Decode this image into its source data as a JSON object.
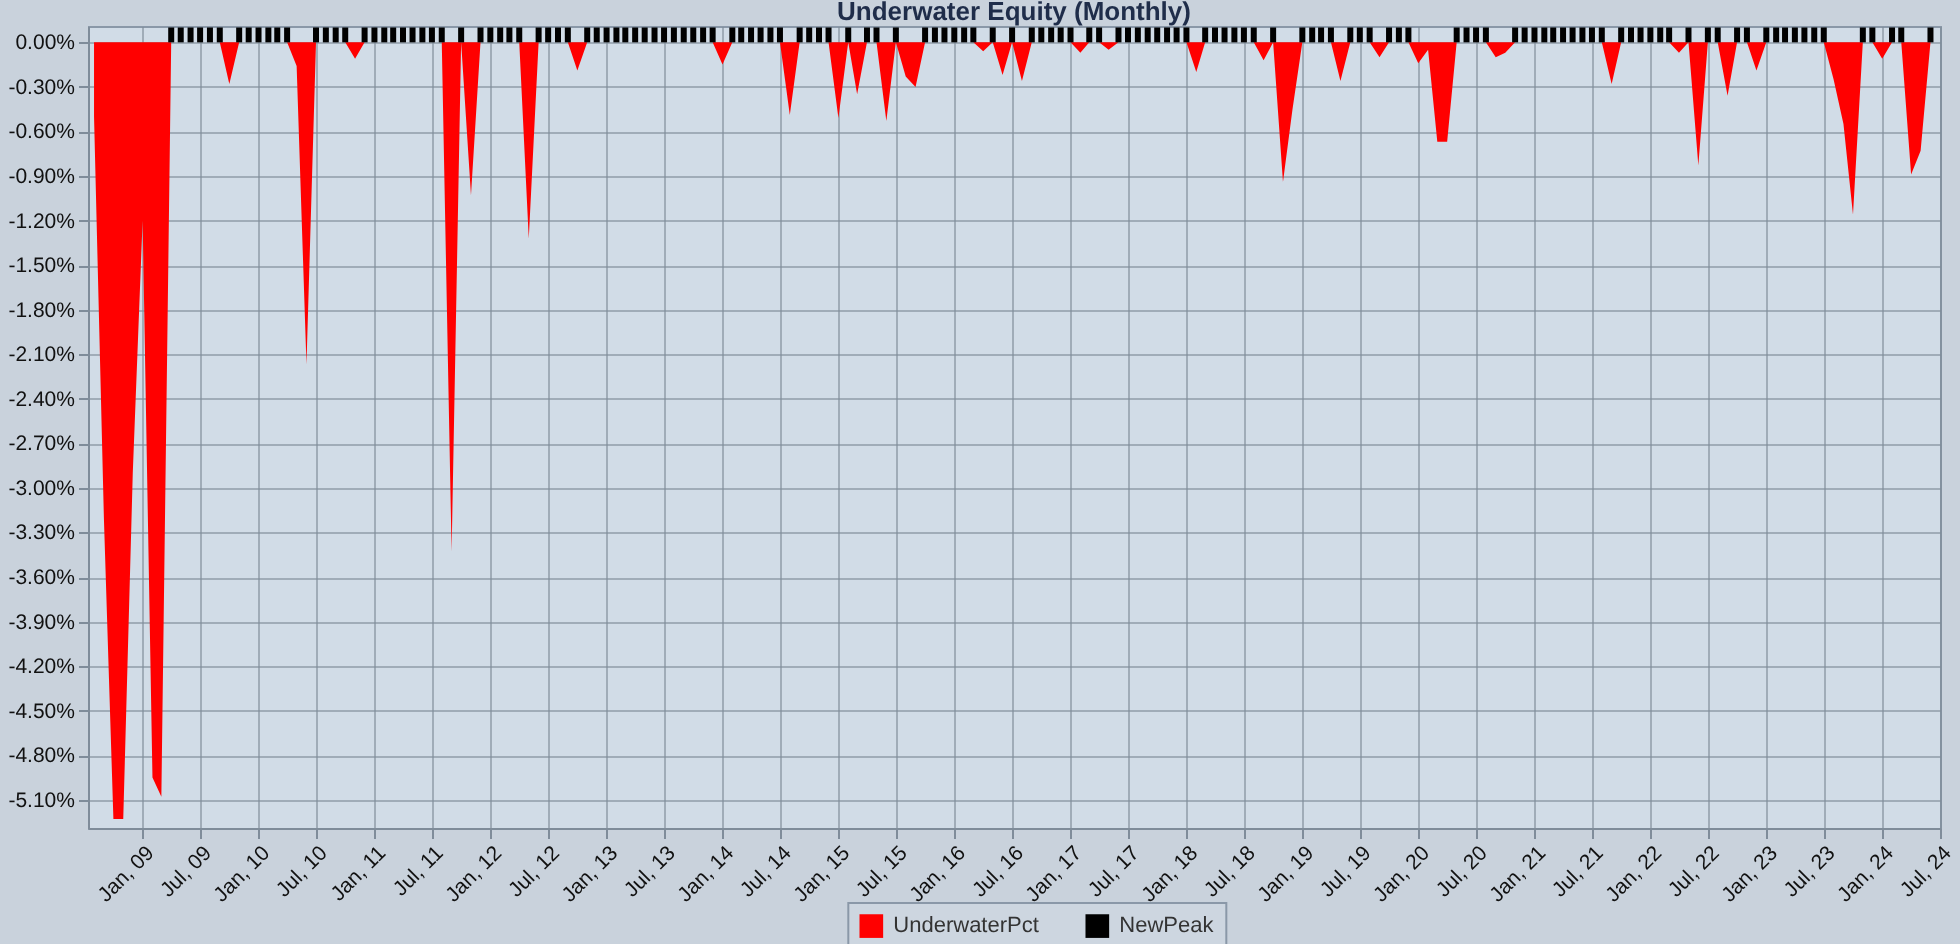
{
  "chart_data": {
    "type": "area",
    "title": "Underwater Equity (Monthly)",
    "x": [
      "2008-08",
      "2008-09",
      "2008-10",
      "2008-11",
      "2008-12",
      "2009-01",
      "2009-02",
      "2009-03",
      "2009-04",
      "2009-05",
      "2009-06",
      "2009-07",
      "2009-08",
      "2009-09",
      "2009-10",
      "2009-11",
      "2009-12",
      "2010-01",
      "2010-02",
      "2010-03",
      "2010-04",
      "2010-05",
      "2010-06",
      "2010-07",
      "2010-08",
      "2010-09",
      "2010-10",
      "2010-11",
      "2010-12",
      "2011-01",
      "2011-02",
      "2011-03",
      "2011-04",
      "2011-05",
      "2011-06",
      "2011-07",
      "2011-08",
      "2011-09",
      "2011-10",
      "2011-11",
      "2011-12",
      "2012-01",
      "2012-02",
      "2012-03",
      "2012-04",
      "2012-05",
      "2012-06",
      "2012-07",
      "2012-08",
      "2012-09",
      "2012-10",
      "2012-11",
      "2012-12",
      "2013-01",
      "2013-02",
      "2013-03",
      "2013-04",
      "2013-05",
      "2013-06",
      "2013-07",
      "2013-08",
      "2013-09",
      "2013-10",
      "2013-11",
      "2013-12",
      "2014-01",
      "2014-02",
      "2014-03",
      "2014-04",
      "2014-05",
      "2014-06",
      "2014-07",
      "2014-08",
      "2014-09",
      "2014-10",
      "2014-11",
      "2014-12",
      "2015-01",
      "2015-02",
      "2015-03",
      "2015-04",
      "2015-05",
      "2015-06",
      "2015-07",
      "2015-08",
      "2015-09",
      "2015-10",
      "2015-11",
      "2015-12",
      "2016-01",
      "2016-02",
      "2016-03",
      "2016-04",
      "2016-05",
      "2016-06",
      "2016-07",
      "2016-08",
      "2016-09",
      "2016-10",
      "2016-11",
      "2016-12",
      "2017-01",
      "2017-02",
      "2017-03",
      "2017-04",
      "2017-05",
      "2017-06",
      "2017-07",
      "2017-08",
      "2017-09",
      "2017-10",
      "2017-11",
      "2017-12",
      "2018-01",
      "2018-02",
      "2018-03",
      "2018-04",
      "2018-05",
      "2018-06",
      "2018-07",
      "2018-08",
      "2018-09",
      "2018-10",
      "2018-11",
      "2018-12",
      "2019-01",
      "2019-02",
      "2019-03",
      "2019-04",
      "2019-05",
      "2019-06",
      "2019-07",
      "2019-08",
      "2019-09",
      "2019-10",
      "2019-11",
      "2019-12",
      "2020-01",
      "2020-02",
      "2020-03",
      "2020-04",
      "2020-05",
      "2020-06",
      "2020-07",
      "2020-08",
      "2020-09",
      "2020-10",
      "2020-11",
      "2020-12",
      "2021-01",
      "2021-02",
      "2021-03",
      "2021-04",
      "2021-05",
      "2021-06",
      "2021-07",
      "2021-08",
      "2021-09",
      "2021-10",
      "2021-11",
      "2021-12",
      "2022-01",
      "2022-02",
      "2022-03",
      "2022-04",
      "2022-05",
      "2022-06",
      "2022-07",
      "2022-08",
      "2022-09",
      "2022-10",
      "2022-11",
      "2022-12",
      "2023-01",
      "2023-02",
      "2023-03",
      "2023-04",
      "2023-05",
      "2023-06",
      "2023-07",
      "2023-08",
      "2023-09",
      "2023-10",
      "2023-11",
      "2023-12",
      "2024-01",
      "2024-02",
      "2024-03",
      "2024-04",
      "2024-05",
      "2024-06"
    ],
    "series": [
      {
        "name": "UnderwaterPct",
        "color": "#ff0000",
        "values": [
          -0.5,
          -3.2,
          -5.23,
          -5.23,
          -2.9,
          -1.2,
          -4.95,
          -5.08,
          0,
          0,
          0,
          0,
          0,
          0,
          -0.28,
          0,
          0,
          0,
          0,
          0,
          0,
          -0.16,
          -2.17,
          0,
          0,
          0,
          0,
          -0.11,
          0,
          0,
          0,
          0,
          0,
          0,
          0,
          0,
          0,
          -3.43,
          0,
          -1.03,
          0,
          0,
          0,
          0,
          0,
          -1.32,
          0,
          0,
          0,
          0,
          -0.19,
          0,
          0,
          0,
          0,
          0,
          0,
          0,
          0,
          0,
          0,
          0,
          0,
          0,
          0,
          -0.15,
          0,
          0,
          0,
          0,
          0,
          0,
          -0.49,
          0,
          0,
          0,
          0,
          -0.51,
          0,
          -0.35,
          0,
          0,
          -0.53,
          0,
          -0.23,
          -0.3,
          0,
          0,
          0,
          0,
          0,
          0,
          -0.06,
          0,
          -0.22,
          0,
          -0.26,
          0,
          0,
          0,
          0,
          0,
          -0.07,
          0,
          0,
          -0.05,
          0,
          0,
          0,
          0,
          0,
          0,
          0,
          0,
          -0.2,
          0,
          0,
          0,
          0,
          0,
          0,
          -0.12,
          0,
          -0.94,
          -0.45,
          0,
          0,
          0,
          0,
          -0.26,
          0,
          0,
          0,
          -0.1,
          0,
          0,
          0,
          -0.14,
          -0.05,
          -0.67,
          -0.67,
          0,
          0,
          0,
          0,
          -0.1,
          -0.07,
          0,
          0,
          0,
          0,
          0,
          0,
          0,
          0,
          0,
          0,
          -0.28,
          0,
          0,
          0,
          0,
          0,
          0,
          -0.07,
          0,
          -0.83,
          0,
          0,
          -0.36,
          0,
          0,
          -0.19,
          0,
          0,
          0,
          0,
          0,
          0,
          0,
          -0.25,
          -0.55,
          -1.16,
          0,
          0,
          -0.11,
          0,
          0,
          -0.89,
          -0.73,
          0
        ]
      },
      {
        "name": "NewPeak",
        "type": "bar",
        "color": "#000000",
        "values": [
          null,
          null,
          null,
          null,
          null,
          null,
          null,
          null,
          0.1,
          0.1,
          0.1,
          0.1,
          0.1,
          0.1,
          null,
          0.1,
          0.1,
          0.1,
          0.1,
          0.1,
          0.1,
          null,
          null,
          0.1,
          0.1,
          0.1,
          0.1,
          null,
          0.1,
          0.1,
          0.1,
          0.1,
          0.1,
          0.1,
          0.1,
          0.1,
          0.1,
          null,
          0.1,
          null,
          0.1,
          0.1,
          0.1,
          0.1,
          0.1,
          null,
          0.1,
          0.1,
          0.1,
          0.1,
          null,
          0.1,
          0.1,
          0.1,
          0.1,
          0.1,
          0.1,
          0.1,
          0.1,
          0.1,
          0.1,
          0.1,
          0.1,
          0.1,
          0.1,
          null,
          0.1,
          0.1,
          0.1,
          0.1,
          0.1,
          0.1,
          null,
          0.1,
          0.1,
          0.1,
          0.1,
          null,
          0.1,
          null,
          0.1,
          0.1,
          null,
          0.1,
          null,
          null,
          0.1,
          0.1,
          0.1,
          0.1,
          0.1,
          0.1,
          null,
          0.1,
          null,
          0.1,
          null,
          0.1,
          0.1,
          0.1,
          0.1,
          0.1,
          null,
          0.1,
          0.1,
          null,
          0.1,
          0.1,
          0.1,
          0.1,
          0.1,
          0.1,
          0.1,
          0.1,
          null,
          0.1,
          0.1,
          0.1,
          0.1,
          0.1,
          0.1,
          null,
          0.1,
          null,
          null,
          0.1,
          0.1,
          0.1,
          0.1,
          null,
          0.1,
          0.1,
          0.1,
          null,
          0.1,
          0.1,
          0.1,
          null,
          null,
          null,
          null,
          0.1,
          0.1,
          0.1,
          0.1,
          null,
          null,
          0.1,
          0.1,
          0.1,
          0.1,
          0.1,
          0.1,
          0.1,
          0.1,
          0.1,
          0.1,
          null,
          0.1,
          0.1,
          0.1,
          0.1,
          0.1,
          0.1,
          null,
          0.1,
          null,
          0.1,
          0.1,
          null,
          0.1,
          0.1,
          null,
          0.1,
          0.1,
          0.1,
          0.1,
          0.1,
          0.1,
          0.1,
          null,
          null,
          null,
          0.1,
          0.1,
          null,
          0.1,
          0.1,
          null,
          null,
          0.1
        ]
      }
    ],
    "xlim": [
      "2008-07-13",
      "2024-07"
    ],
    "xticks": [
      {
        "value": "2009-01",
        "label": "Jan, 09"
      },
      {
        "value": "2009-07",
        "label": "Jul, 09"
      },
      {
        "value": "2010-01",
        "label": "Jan, 10"
      },
      {
        "value": "2010-07",
        "label": "Jul, 10"
      },
      {
        "value": "2011-01",
        "label": "Jan, 11"
      },
      {
        "value": "2011-07",
        "label": "Jul, 11"
      },
      {
        "value": "2012-01",
        "label": "Jan, 12"
      },
      {
        "value": "2012-07",
        "label": "Jul, 12"
      },
      {
        "value": "2013-01",
        "label": "Jan, 13"
      },
      {
        "value": "2013-07",
        "label": "Jul, 13"
      },
      {
        "value": "2014-01",
        "label": "Jan, 14"
      },
      {
        "value": "2014-07",
        "label": "Jul, 14"
      },
      {
        "value": "2015-01",
        "label": "Jan, 15"
      },
      {
        "value": "2015-07",
        "label": "Jul, 15"
      },
      {
        "value": "2016-01",
        "label": "Jan, 16"
      },
      {
        "value": "2016-07",
        "label": "Jul, 16"
      },
      {
        "value": "2017-01",
        "label": "Jan, 17"
      },
      {
        "value": "2017-07",
        "label": "Jul, 17"
      },
      {
        "value": "2018-01",
        "label": "Jan, 18"
      },
      {
        "value": "2018-07",
        "label": "Jul, 18"
      },
      {
        "value": "2019-01",
        "label": "Jan, 19"
      },
      {
        "value": "2019-07",
        "label": "Jul, 19"
      },
      {
        "value": "2020-01",
        "label": "Jan, 20"
      },
      {
        "value": "2020-07",
        "label": "Jul, 20"
      },
      {
        "value": "2021-01",
        "label": "Jan, 21"
      },
      {
        "value": "2021-07",
        "label": "Jul, 21"
      },
      {
        "value": "2022-01",
        "label": "Jan, 22"
      },
      {
        "value": "2022-07",
        "label": "Jul, 22"
      },
      {
        "value": "2023-01",
        "label": "Jan, 23"
      },
      {
        "value": "2023-07",
        "label": "Jul, 23"
      },
      {
        "value": "2024-01",
        "label": "Jan, 24"
      },
      {
        "value": "2024-07",
        "label": "Jul, 24"
      }
    ],
    "ylim": [
      -5.29,
      0.11
    ],
    "yticks": [
      {
        "value": 0,
        "label": "0.00%"
      },
      {
        "value": -0.3,
        "label": "-0.30%"
      },
      {
        "value": -0.6,
        "label": "-0.60%"
      },
      {
        "value": -0.9,
        "label": "-0.90%"
      },
      {
        "value": -1.2,
        "label": "-1.20%"
      },
      {
        "value": -1.5,
        "label": "-1.50%"
      },
      {
        "value": -1.8,
        "label": "-1.80%"
      },
      {
        "value": -2.1,
        "label": "-2.10%"
      },
      {
        "value": -2.4,
        "label": "-2.40%"
      },
      {
        "value": -2.7,
        "label": "-2.70%"
      },
      {
        "value": -3.0,
        "label": "-3.00%"
      },
      {
        "value": -3.3,
        "label": "-3.30%"
      },
      {
        "value": -3.6,
        "label": "-3.60%"
      },
      {
        "value": -3.9,
        "label": "-3.90%"
      },
      {
        "value": -4.2,
        "label": "-4.20%"
      },
      {
        "value": -4.5,
        "label": "-4.50%"
      },
      {
        "value": -4.8,
        "label": "-4.80%"
      },
      {
        "value": -5.1,
        "label": "-5.10%"
      }
    ],
    "grid": true,
    "legend": "bottom"
  }
}
